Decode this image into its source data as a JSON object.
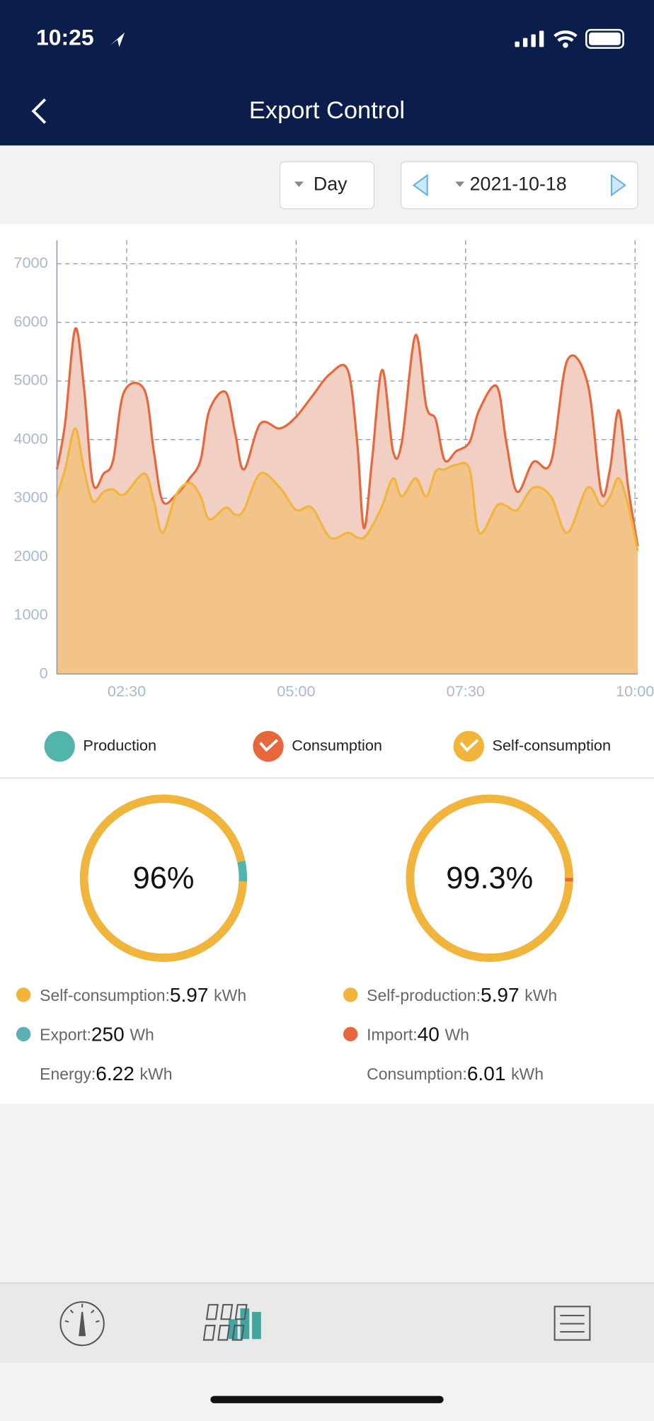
{
  "status_bar": {
    "time": "10:25"
  },
  "header": {
    "title": "Export Control"
  },
  "controls": {
    "period": "Day",
    "date": "2021-10-18"
  },
  "chart_data": {
    "type": "area",
    "x": [
      1.47,
      1.59,
      1.74,
      1.87,
      2.0,
      2.16,
      2.3,
      2.46,
      2.76,
      2.9,
      3.03,
      3.23,
      3.43,
      3.59,
      3.72,
      3.96,
      4.1,
      4.23,
      4.47,
      4.76,
      5.0,
      5.23,
      5.5,
      5.76,
      5.9,
      6.0,
      6.12,
      6.27,
      6.43,
      6.56,
      6.76,
      6.92,
      7.06,
      7.19,
      7.36,
      7.56,
      7.7,
      7.96,
      8.1,
      8.26,
      8.5,
      8.76,
      9.0,
      9.3,
      9.5,
      9.63,
      9.76,
      9.9,
      10.04
    ],
    "series": [
      {
        "name": "Consumption",
        "color": "#e8673a",
        "fill": "#f2cfc3",
        "values": [
          3490,
          4270,
          5890,
          4880,
          3260,
          3420,
          3650,
          4810,
          4850,
          3800,
          2950,
          3060,
          3340,
          3650,
          4500,
          4810,
          4110,
          3490,
          4270,
          4190,
          4390,
          4730,
          5120,
          5190,
          3960,
          2490,
          3650,
          5190,
          3800,
          3960,
          5780,
          4570,
          4340,
          3650,
          3800,
          3960,
          4500,
          4910,
          3960,
          3110,
          3620,
          3620,
          5350,
          4960,
          3110,
          3490,
          4500,
          3180,
          2180
        ]
      },
      {
        "name": "Self-consumption",
        "color": "#f2b53b",
        "fill": "#f2c48a",
        "values": [
          3030,
          3490,
          4190,
          3490,
          2950,
          3110,
          3150,
          3060,
          3420,
          2950,
          2410,
          3060,
          3260,
          3030,
          2640,
          2840,
          2720,
          2800,
          3420,
          3180,
          2800,
          2840,
          2330,
          2410,
          2330,
          2330,
          2520,
          2870,
          3340,
          3030,
          3340,
          3030,
          3460,
          3490,
          3570,
          3490,
          2410,
          2870,
          2870,
          2800,
          3180,
          3030,
          2410,
          3180,
          2870,
          3030,
          3340,
          2870,
          2100
        ]
      }
    ],
    "xlim": [
      1.47,
      10.04
    ],
    "xticks": [
      {
        "value": 2.5,
        "label": "02:30"
      },
      {
        "value": 5,
        "label": "05:00"
      },
      {
        "value": 7.5,
        "label": "07:30"
      },
      {
        "value": 10,
        "label": "10:00"
      }
    ],
    "ylim": [
      0,
      7400
    ],
    "yticks": [
      0,
      1000,
      2000,
      3000,
      4000,
      5000,
      6000,
      7000
    ],
    "grid": true
  },
  "legend": {
    "production": {
      "name": "Production",
      "color": "#52b5ab"
    }
  },
  "summary": [
    {
      "ring": {
        "value": 96,
        "label": "96%",
        "color": "#f2b53b",
        "rest_color": "#52b5ab"
      },
      "rows": [
        {
          "label": "Self-consumption:",
          "value": 5.97,
          "unit": "kWh",
          "dot": "#f2b53b"
        },
        {
          "label": "Export:",
          "value": 250,
          "unit": "Wh",
          "dot": "#5bb0b5"
        },
        {
          "label": "Energy:",
          "value": 6.22,
          "unit": "kWh"
        }
      ]
    },
    {
      "ring": {
        "value": 99.3,
        "label": "99.3%",
        "color": "#f2b53b",
        "rest_color": "#e8673a"
      },
      "rows": [
        {
          "label": "Self-production:",
          "value": 5.97,
          "unit": "kWh",
          "dot": "#f2b53b"
        },
        {
          "label": "Import:",
          "value": 40,
          "unit": "Wh",
          "dot": "#e8673a"
        },
        {
          "label": "Consumption:",
          "value": 6.01,
          "unit": "kWh"
        }
      ]
    }
  ]
}
